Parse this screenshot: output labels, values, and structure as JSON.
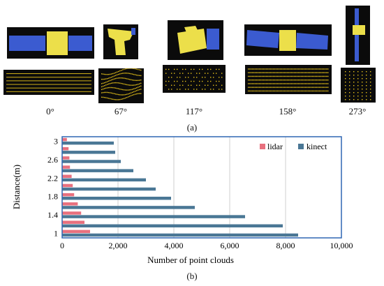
{
  "panel_a": {
    "label": "(a)",
    "angles": [
      "0°",
      "67°",
      "117°",
      "158°",
      "273°"
    ]
  },
  "panel_b": {
    "label": "(b)"
  },
  "colors": {
    "lidar": "#e8707e",
    "kinect": "#4a7795",
    "satellite_body": "#ecdf4a",
    "satellite_panel": "#3b5bd0",
    "points": "#e6c21a",
    "frame": "#2f66b3"
  },
  "chart_data": {
    "type": "bar",
    "orientation": "horizontal",
    "categories": [
      "1",
      "1.2",
      "1.4",
      "1.6",
      "1.8",
      "2",
      "2.2",
      "2.4",
      "2.6",
      "2.8",
      "3"
    ],
    "tick_labels_shown": [
      "1",
      "1.4",
      "1.8",
      "2.2",
      "2.6",
      "3"
    ],
    "series": [
      {
        "name": "lidar",
        "values": [
          1000,
          800,
          680,
          560,
          430,
          380,
          340,
          280,
          260,
          230,
          170
        ]
      },
      {
        "name": "kinect",
        "values": [
          8450,
          7900,
          6550,
          4750,
          3900,
          3350,
          3000,
          2550,
          2100,
          1900,
          1850
        ]
      }
    ],
    "xlabel": "Number of point clouds",
    "ylabel": "Distance(m)",
    "xlim": [
      0,
      10000
    ],
    "xticks": [
      "0",
      "2,000",
      "4,000",
      "6,000",
      "8,000",
      "10,000"
    ],
    "grid": "vertical",
    "legend": "top-right"
  }
}
